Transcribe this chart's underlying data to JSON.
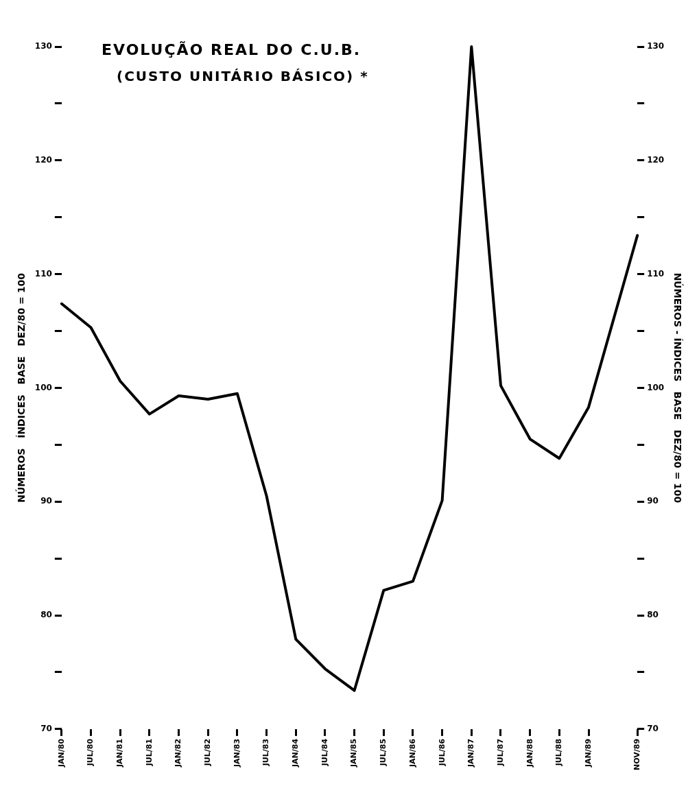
{
  "chart_data": {
    "type": "line",
    "title": "EVOLUÇÃO REAL DO C.U.B.",
    "subtitle": "(CUSTO UNITÁRIO BÁSICO) *",
    "ylabel": "NÚMEROS   ÍNDICES   BASE   DEZ/80 = 100",
    "y2label": "NÚMEROS - ÍNDICES   BASE   DEZ/80 = 100",
    "x": [
      "1980-01",
      "1980-07",
      "1981-01",
      "1981-07",
      "1982-01",
      "1982-07",
      "1983-01",
      "1983-07",
      "1984-01",
      "1984-07",
      "1985-01",
      "1985-07",
      "1986-01",
      "1986-07",
      "1987-01",
      "1987-07",
      "1988-01",
      "1988-07",
      "1989-01",
      "1989-11"
    ],
    "series": [
      {
        "color": "#000000",
        "values": [
          107.4,
          105.3,
          100.6,
          97.7,
          99.3,
          99.0,
          99.5,
          90.5,
          77.9,
          75.3,
          73.4,
          82.2,
          83.0,
          90.1,
          130.0,
          100.2,
          95.5,
          93.8,
          98.3,
          113.4
        ]
      }
    ],
    "xlim": [
      "1980-01",
      "1989-11"
    ],
    "xticks": [
      {
        "value": "1980-01",
        "label": "JAN/80"
      },
      {
        "value": "1980-07",
        "label": "JUL/80"
      },
      {
        "value": "1981-01",
        "label": "JAN/81"
      },
      {
        "value": "1981-07",
        "label": "JUL/81"
      },
      {
        "value": "1982-01",
        "label": "JAN/82"
      },
      {
        "value": "1982-07",
        "label": "JUL/82"
      },
      {
        "value": "1983-01",
        "label": "JAN/83"
      },
      {
        "value": "1983-07",
        "label": "JUL/83"
      },
      {
        "value": "1984-01",
        "label": "JAN/84"
      },
      {
        "value": "1984-07",
        "label": "JUL/84"
      },
      {
        "value": "1985-01",
        "label": "JAN/85"
      },
      {
        "value": "1985-07",
        "label": "JUL/85"
      },
      {
        "value": "1986-01",
        "label": "JAN/86"
      },
      {
        "value": "1986-07",
        "label": "JUL/86"
      },
      {
        "value": "1987-01",
        "label": "JAN/87"
      },
      {
        "value": "1987-07",
        "label": "JUL/87"
      },
      {
        "value": "1988-01",
        "label": "JAN/88"
      },
      {
        "value": "1988-07",
        "label": "JUL/88"
      },
      {
        "value": "1989-01",
        "label": "JAN/89"
      },
      {
        "value": "1989-11",
        "label": "NOV/89"
      }
    ],
    "ylim": [
      70,
      130
    ],
    "yticks": [
      70,
      {
        "value": 75,
        "label": null
      },
      80,
      {
        "value": 85,
        "label": null
      },
      90,
      {
        "value": 95,
        "label": null
      },
      100,
      {
        "value": 105,
        "label": null
      },
      110,
      {
        "value": 115,
        "label": null
      },
      120,
      {
        "value": 125,
        "label": null
      },
      130
    ],
    "y2lim": [
      70,
      130
    ],
    "y2ticks": [
      70,
      {
        "value": 75,
        "label": null
      },
      80,
      {
        "value": 85,
        "label": null
      },
      90,
      {
        "value": 95,
        "label": null
      },
      100,
      {
        "value": 105,
        "label": null
      },
      110,
      {
        "value": 115,
        "label": null
      },
      120,
      {
        "value": 125,
        "label": null
      },
      130
    ],
    "grid": false,
    "legend": false,
    "marker": "none",
    "line_style": "solid"
  }
}
